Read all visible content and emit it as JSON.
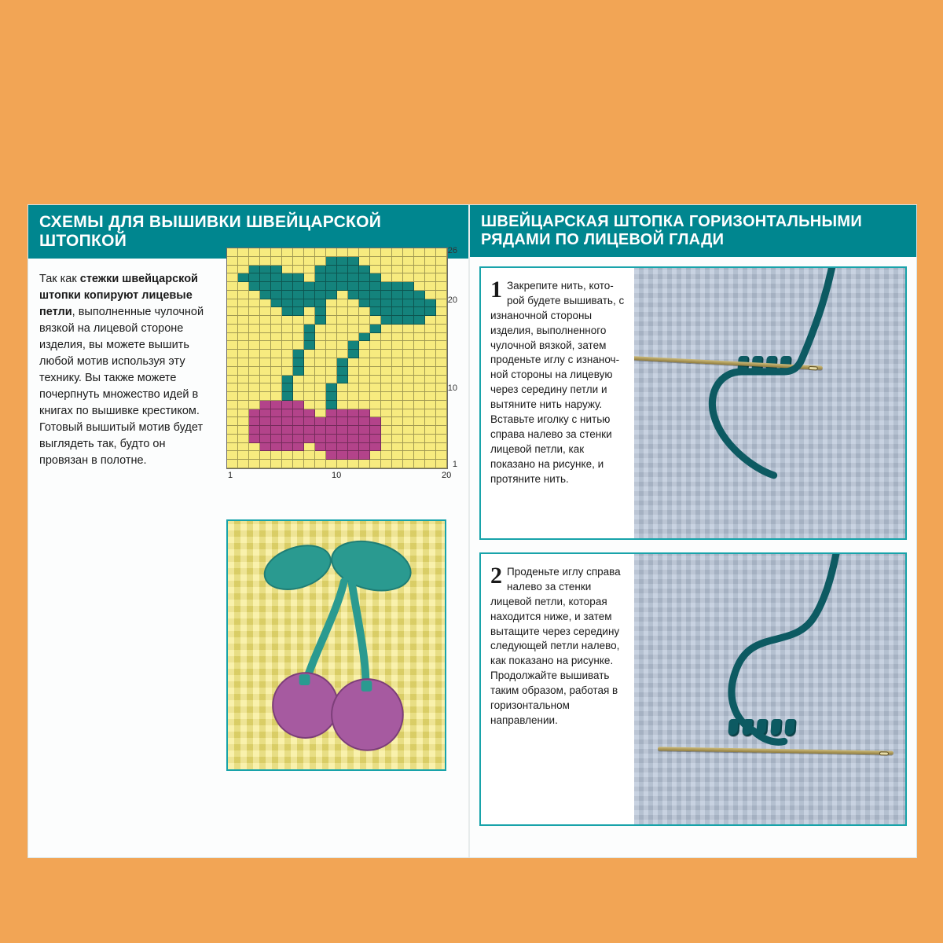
{
  "colors": {
    "page_bg": "#f2a555",
    "panel_bg": "#fcfdfd",
    "header_bg": "#00868f",
    "header_text": "#ffffff",
    "accent_border": "#18a3aa",
    "chart_bg": "#f7eb7f",
    "chart_grid": "rgba(0,0,0,.35)",
    "leaf": "#14837c",
    "cherry": "#b3438a",
    "knit_light": "#b7c4d7",
    "yarn": "#0d5a62",
    "needle": "#ab945a"
  },
  "left": {
    "header": "СХЕМЫ ДЛЯ ВЫШИВКИ ШВЕЙЦАРСКОЙ ШТОПКОЙ",
    "intro_html": "Так как <b>стежки швейцарской штопки копируют лицевые петли</b>, выполненные чулоч­ной вязкой на лицевой сто­роне изделия, вы можете вышить любой мотив используя эту технику. Вы также можете почерпнуть множество идей в книгах по вышивке крестиком. Готовый вышитый мотив будет выглядеть так, будто он провязан в полотне.",
    "chart": {
      "type": "grid-chart",
      "cols": 20,
      "rows": 26,
      "y_ticks": [
        26,
        20,
        10,
        1
      ],
      "x_ticks": [
        1,
        10,
        20
      ],
      "cell_palette": {
        ".": "#f7eb7f",
        "t": "#14837c",
        "m": "#b3438a"
      },
      "rows_data": [
        "....................",
        ".........ttt........",
        "..ttt...ttttt.......",
        ".tttttt.tttttt......",
        "..ttttttttttttttt...",
        "...ttttttt.ttttttt..",
        "....ttttt...ttttttt.",
        ".....tt.t....tttttt.",
        "........t.....tttt..",
        ".......t.....t......",
        ".......t....t.......",
        ".......t...t........",
        "......t....t........",
        "......t...t.........",
        "......t...t.........",
        ".....t....t.........",
        ".....t...t..........",
        ".....t...t..........",
        "...mmmm..t..........",
        "..mmmmmm.mmmm.......",
        "..mmmmmmmmmmmm......",
        "..mmmmmmmmmmmm......",
        "..mmmmmmmmmmmm......",
        "...mmmm.mmmmmm......",
        ".........mmmm.......",
        "...................."
      ]
    }
  },
  "right": {
    "header": "ШВЕЙЦАРСКАЯ ШТОПКА ГОРИЗОНТАЛЬНЫМИ РЯДАМИ ПО ЛИЦЕВОЙ ГЛАДИ",
    "steps": [
      {
        "num": "1",
        "text": "Закрепите нить, кото­рой будете вышивать, с изнаночной стороны изделия, выполненного чулочной вязкой, затем проденьте иглу с изнаноч­ной стороны на лицевую через середину петли и вытяните нить наружу. Вставьте иголку с нитью справа налево за стенки лицевой петли, как показано на рисунке, и протяните нить."
      },
      {
        "num": "2",
        "text": "Проденьте иглу справа налево за стенки лицевой петли, которая находится ниже, и затем вытащите через середину следующей петли налево, как показано на рисунке. Про­должайте вышивать таким образом, работая в горизонтальном направлении."
      }
    ]
  }
}
